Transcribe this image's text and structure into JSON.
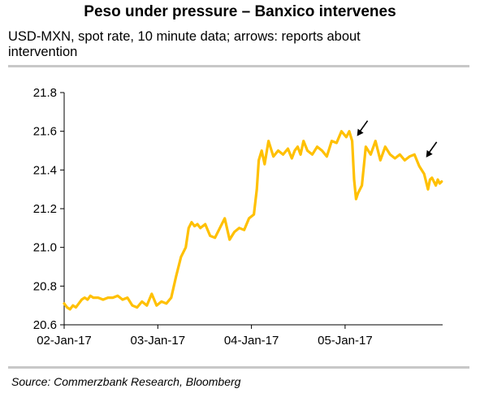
{
  "chart_data": {
    "type": "line",
    "title": "Peso under pressure – Banxico intervenes",
    "subtitle": "USD-MXN, spot rate, 10 minute data; arrows: reports about intervention",
    "source": "Source: Commerzbank Research, Bloomberg",
    "x_ticks": [
      "02-Jan-17",
      "03-Jan-17",
      "04-Jan-17",
      "05-Jan-17"
    ],
    "y_ticks": [
      "20.6",
      "20.8",
      "21.0",
      "21.2",
      "21.4",
      "21.6",
      "21.8"
    ],
    "ylim": [
      20.6,
      21.8
    ],
    "xlim": [
      0,
      3.89
    ],
    "grid": false,
    "line_color": "#ffc000",
    "series": [
      {
        "x": [
          0.0,
          0.03,
          0.06,
          0.09,
          0.12,
          0.15,
          0.18,
          0.21,
          0.24,
          0.27,
          0.3,
          0.35,
          0.4,
          0.45,
          0.5,
          0.55,
          0.6,
          0.65,
          0.7,
          0.75,
          0.8,
          0.85,
          0.9,
          0.95,
          1.0,
          1.05,
          1.1,
          1.15,
          1.2,
          1.25,
          1.28,
          1.31,
          1.34,
          1.37,
          1.4,
          1.45,
          1.5,
          1.55,
          1.6,
          1.65,
          1.7,
          1.75,
          1.8,
          1.85,
          1.9,
          1.95,
          1.98,
          2.0,
          2.03,
          2.06,
          2.1,
          2.15,
          2.2,
          2.25,
          2.3,
          2.34,
          2.37,
          2.4,
          2.43,
          2.46,
          2.5,
          2.55,
          2.6,
          2.65,
          2.7,
          2.75,
          2.8,
          2.85,
          2.9,
          2.93,
          2.96,
          2.98,
          3.0,
          3.02,
          3.04,
          3.06,
          3.1,
          3.15,
          3.2,
          3.25,
          3.3,
          3.35,
          3.4,
          3.45,
          3.5,
          3.55,
          3.6,
          3.65,
          3.7,
          3.74,
          3.76,
          3.78,
          3.8,
          3.82,
          3.84,
          3.86,
          3.88
        ],
        "y": [
          20.71,
          20.69,
          20.68,
          20.7,
          20.69,
          20.71,
          20.73,
          20.74,
          20.73,
          20.75,
          20.74,
          20.74,
          20.73,
          20.74,
          20.74,
          20.75,
          20.73,
          20.74,
          20.7,
          20.69,
          20.72,
          20.7,
          20.76,
          20.7,
          20.72,
          20.71,
          20.74,
          20.85,
          20.95,
          21.0,
          21.1,
          21.13,
          21.11,
          21.12,
          21.1,
          21.12,
          21.06,
          21.05,
          21.1,
          21.15,
          21.04,
          21.08,
          21.1,
          21.09,
          21.15,
          21.17,
          21.3,
          21.45,
          21.5,
          21.43,
          21.55,
          21.47,
          21.5,
          21.48,
          21.51,
          21.46,
          21.5,
          21.52,
          21.48,
          21.55,
          21.5,
          21.48,
          21.52,
          21.5,
          21.47,
          21.55,
          21.54,
          21.6,
          21.57,
          21.6,
          21.55,
          21.35,
          21.25,
          21.28,
          21.3,
          21.32,
          21.52,
          21.48,
          21.55,
          21.45,
          21.52,
          21.48,
          21.46,
          21.48,
          21.45,
          21.47,
          21.48,
          21.42,
          21.38,
          21.3,
          21.35,
          21.36,
          21.34,
          21.32,
          21.35,
          21.33,
          21.34
        ]
      }
    ],
    "annotations": [
      {
        "type": "arrow",
        "x": 2.96,
        "y": 21.6
      },
      {
        "type": "arrow",
        "x": 3.67,
        "y": 21.49
      }
    ]
  }
}
